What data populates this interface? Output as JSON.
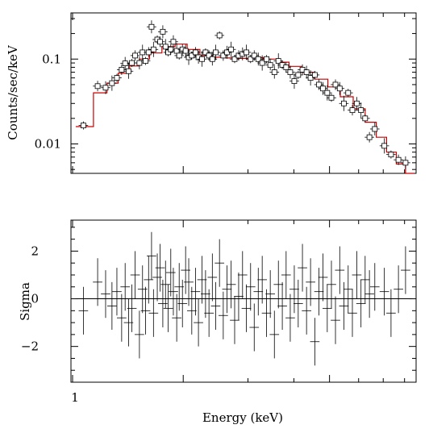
{
  "chart_data": [
    {
      "type": "scatter",
      "panel": "spectrum",
      "xlabel": "",
      "ylabel": "Counts/sec/keV",
      "x_scale": "log",
      "y_scale": "log",
      "xlim": [
        0.99,
        8.6
      ],
      "ylim": [
        0.0045,
        0.35
      ],
      "ytick_labels": [
        {
          "value": 0.1,
          "label": "0.1"
        },
        {
          "value": 0.01,
          "label": "0.01"
        }
      ],
      "series": [
        {
          "kind": "data",
          "marker": "open-square",
          "color": "#000000",
          "x": [
            1.07,
            1.17,
            1.23,
            1.28,
            1.32,
            1.36,
            1.39,
            1.42,
            1.45,
            1.48,
            1.52,
            1.55,
            1.58,
            1.61,
            1.64,
            1.66,
            1.7,
            1.73,
            1.76,
            1.79,
            1.82,
            1.85,
            1.88,
            1.92,
            1.95,
            1.99,
            2.03,
            2.07,
            2.11,
            2.16,
            2.2,
            2.25,
            2.3,
            2.35,
            2.4,
            2.45,
            2.51,
            2.57,
            2.63,
            2.7,
            2.76,
            2.83,
            2.9,
            2.97,
            3.05,
            3.12,
            3.2,
            3.28,
            3.37,
            3.45,
            3.54,
            3.63,
            3.72,
            3.81,
            3.91,
            4.01,
            4.11,
            4.22,
            4.33,
            4.44,
            4.56,
            4.68,
            4.8,
            4.93,
            5.06,
            5.19,
            5.33,
            5.47,
            5.62,
            5.77,
            5.93,
            6.09,
            6.25,
            6.42,
            6.64,
            7.05,
            7.35,
            7.7,
            8.05
          ],
          "y": [
            0.0165,
            0.048,
            0.046,
            0.052,
            0.06,
            0.075,
            0.089,
            0.072,
            0.09,
            0.11,
            0.09,
            0.12,
            0.095,
            0.12,
            0.24,
            0.13,
            0.17,
            0.16,
            0.21,
            0.14,
            0.12,
            0.13,
            0.16,
            0.125,
            0.11,
            0.13,
            0.125,
            0.105,
            0.11,
            0.12,
            0.105,
            0.1,
            0.12,
            0.11,
            0.1,
            0.12,
            0.19,
            0.11,
            0.12,
            0.13,
            0.1,
            0.11,
            0.115,
            0.12,
            0.1,
            0.11,
            0.1,
            0.09,
            0.1,
            0.085,
            0.07,
            0.095,
            0.085,
            0.08,
            0.07,
            0.055,
            0.065,
            0.075,
            0.07,
            0.06,
            0.065,
            0.05,
            0.045,
            0.04,
            0.035,
            0.05,
            0.045,
            0.03,
            0.04,
            0.025,
            0.03,
            0.025,
            0.02,
            0.012,
            0.015,
            0.0095,
            0.0075,
            0.0065,
            0.006
          ]
        },
        {
          "kind": "model",
          "line": "step",
          "color": "#cc0000",
          "x": [
            1.02,
            1.14,
            1.24,
            1.33,
            1.43,
            1.52,
            1.62,
            1.75,
            1.9,
            2.05,
            2.22,
            2.4,
            2.6,
            2.82,
            3.05,
            3.3,
            3.58,
            3.88,
            4.2,
            4.55,
            4.95,
            5.35,
            5.8,
            6.25,
            6.7,
            7.15,
            7.6,
            8.05,
            8.5
          ],
          "y": [
            0.016,
            0.04,
            0.052,
            0.068,
            0.083,
            0.1,
            0.118,
            0.14,
            0.15,
            0.13,
            0.11,
            0.105,
            0.103,
            0.102,
            0.104,
            0.1,
            0.092,
            0.082,
            0.07,
            0.058,
            0.047,
            0.036,
            0.026,
            0.018,
            0.012,
            0.008,
            0.0058,
            0.0045,
            0.0045
          ]
        }
      ]
    },
    {
      "type": "scatter",
      "panel": "residuals",
      "xlabel": "Energy (keV)",
      "ylabel": "Sigma",
      "x_scale": "log",
      "xlim": [
        0.99,
        8.6
      ],
      "ylim": [
        -3.5,
        3.3
      ],
      "xtick_labels": [
        {
          "value": 1,
          "label": "1"
        }
      ],
      "ytick_labels": [
        {
          "value": 2,
          "label": "2"
        },
        {
          "value": 0,
          "label": "0"
        },
        {
          "value": -2,
          "label": "−2"
        }
      ],
      "reference_line": 0,
      "series": [
        {
          "kind": "residuals",
          "marker": "cross-error-bar",
          "color": "#000000",
          "x": [
            1.07,
            1.17,
            1.23,
            1.28,
            1.32,
            1.36,
            1.39,
            1.42,
            1.45,
            1.48,
            1.52,
            1.55,
            1.58,
            1.61,
            1.64,
            1.66,
            1.7,
            1.73,
            1.76,
            1.79,
            1.82,
            1.85,
            1.88,
            1.92,
            1.95,
            1.99,
            2.03,
            2.07,
            2.11,
            2.16,
            2.2,
            2.25,
            2.3,
            2.35,
            2.4,
            2.45,
            2.51,
            2.57,
            2.63,
            2.7,
            2.76,
            2.83,
            2.9,
            2.97,
            3.05,
            3.12,
            3.2,
            3.28,
            3.37,
            3.45,
            3.54,
            3.63,
            3.72,
            3.81,
            3.91,
            4.01,
            4.11,
            4.22,
            4.33,
            4.44,
            4.56,
            4.68,
            4.8,
            4.93,
            5.06,
            5.19,
            5.33,
            5.47,
            5.62,
            5.77,
            5.93,
            6.09,
            6.25,
            6.42,
            6.64,
            7.05,
            7.35,
            7.7,
            8.05
          ],
          "y": [
            -0.5,
            0.7,
            0.2,
            -0.3,
            0.3,
            -0.8,
            0.5,
            -1.0,
            -0.4,
            1.0,
            -1.5,
            0.4,
            -0.5,
            0.8,
            1.8,
            -0.6,
            0.9,
            1.3,
            -0.2,
            0.6,
            -0.4,
            1.1,
            0.3,
            -0.8,
            0.5,
            -0.2,
            1.2,
            0.7,
            -0.5,
            0.3,
            -1.0,
            0.8,
            0.2,
            -0.6,
            0.9,
            -0.3,
            1.5,
            -0.7,
            0.4,
            0.6,
            -0.9,
            0.1,
            1.0,
            -0.4,
            0.5,
            -1.2,
            0.3,
            0.8,
            -0.6,
            0.2,
            -1.5,
            0.6,
            -0.3,
            1.0,
            -0.8,
            0.4,
            -0.2,
            1.3,
            -0.5,
            0.7,
            -1.8,
            0.3,
            0.9,
            -0.4,
            0.6,
            -0.9,
            1.2,
            -0.3,
            0.4,
            -0.6,
            1.0,
            -0.2,
            0.8,
            0.2,
            0.5,
            0.3,
            -0.6,
            0.4,
            1.2
          ]
        }
      ]
    }
  ]
}
